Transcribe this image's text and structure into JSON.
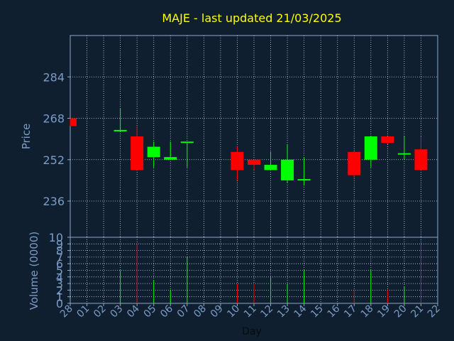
{
  "chart_data": [
    {
      "type": "candlestick",
      "title": "MAJE - last updated 21/03/2025",
      "xlabel": "Day",
      "ylabel": "Price",
      "x_ticks": [
        "28",
        "01",
        "02",
        "03",
        "04",
        "05",
        "06",
        "07",
        "08",
        "09",
        "10",
        "11",
        "12",
        "13",
        "14",
        "15",
        "16",
        "17",
        "18",
        "19",
        "20",
        "21",
        "22"
      ],
      "y_ticks": [
        236,
        252,
        268,
        284
      ],
      "ylim": [
        222,
        300
      ],
      "grid": true,
      "colors": {
        "up": "#00ff00",
        "down": "#ff0000",
        "title": "#ffff00",
        "axis": "#7a9cc6"
      },
      "candles": [
        {
          "day": "28",
          "open": 268,
          "high": 268,
          "low": 265,
          "close": 265
        },
        {
          "day": "03",
          "open": 263,
          "high": 272,
          "low": 263,
          "close": 263.5
        },
        {
          "day": "04",
          "open": 261,
          "high": 265,
          "low": 248,
          "close": 248
        },
        {
          "day": "05",
          "open": 253,
          "high": 259,
          "low": 249,
          "close": 257
        },
        {
          "day": "06",
          "open": 252,
          "high": 259,
          "low": 252,
          "close": 253
        },
        {
          "day": "07",
          "open": 258.5,
          "high": 259,
          "low": 249,
          "close": 259
        },
        {
          "day": "10",
          "open": 255,
          "high": 257,
          "low": 244,
          "close": 248
        },
        {
          "day": "11",
          "open": 252,
          "high": 252,
          "low": 248,
          "close": 250
        },
        {
          "day": "12",
          "open": 248,
          "high": 255,
          "low": 248,
          "close": 250
        },
        {
          "day": "13",
          "open": 244,
          "high": 258,
          "low": 243,
          "close": 252
        },
        {
          "day": "14",
          "open": 244,
          "high": 253,
          "low": 242,
          "close": 244.5
        },
        {
          "day": "17",
          "open": 255,
          "high": 255,
          "low": 245,
          "close": 246
        },
        {
          "day": "18",
          "open": 252,
          "high": 261,
          "low": 249,
          "close": 261
        },
        {
          "day": "19",
          "open": 261,
          "high": 261,
          "low": 258,
          "close": 258.5
        },
        {
          "day": "20",
          "open": 254,
          "high": 261,
          "low": 252,
          "close": 254.5
        },
        {
          "day": "21",
          "open": 256,
          "high": 261,
          "low": 248,
          "close": 248
        }
      ]
    },
    {
      "type": "bar",
      "xlabel": "Day",
      "ylabel": "Volume (0000)",
      "y_ticks": [
        0,
        1,
        2,
        3,
        4,
        5,
        6,
        7,
        8,
        9,
        10
      ],
      "ylim": [
        0,
        10
      ],
      "grid": true,
      "bars": [
        {
          "day": "03",
          "value": 5,
          "direction": "up"
        },
        {
          "day": "04",
          "value": 9,
          "direction": "down"
        },
        {
          "day": "05",
          "value": 3.5,
          "direction": "up"
        },
        {
          "day": "06",
          "value": 2,
          "direction": "up"
        },
        {
          "day": "07",
          "value": 7,
          "direction": "up"
        },
        {
          "day": "10",
          "value": 3,
          "direction": "down"
        },
        {
          "day": "11",
          "value": 3,
          "direction": "down"
        },
        {
          "day": "12",
          "value": 4,
          "direction": "up"
        },
        {
          "day": "13",
          "value": 3,
          "direction": "up"
        },
        {
          "day": "14",
          "value": 5,
          "direction": "up"
        },
        {
          "day": "17",
          "value": 2,
          "direction": "down"
        },
        {
          "day": "18",
          "value": 5,
          "direction": "up"
        },
        {
          "day": "19",
          "value": 2,
          "direction": "down"
        },
        {
          "day": "20",
          "value": 2.5,
          "direction": "up"
        },
        {
          "day": "21",
          "value": 9.5,
          "direction": "down"
        }
      ]
    }
  ]
}
